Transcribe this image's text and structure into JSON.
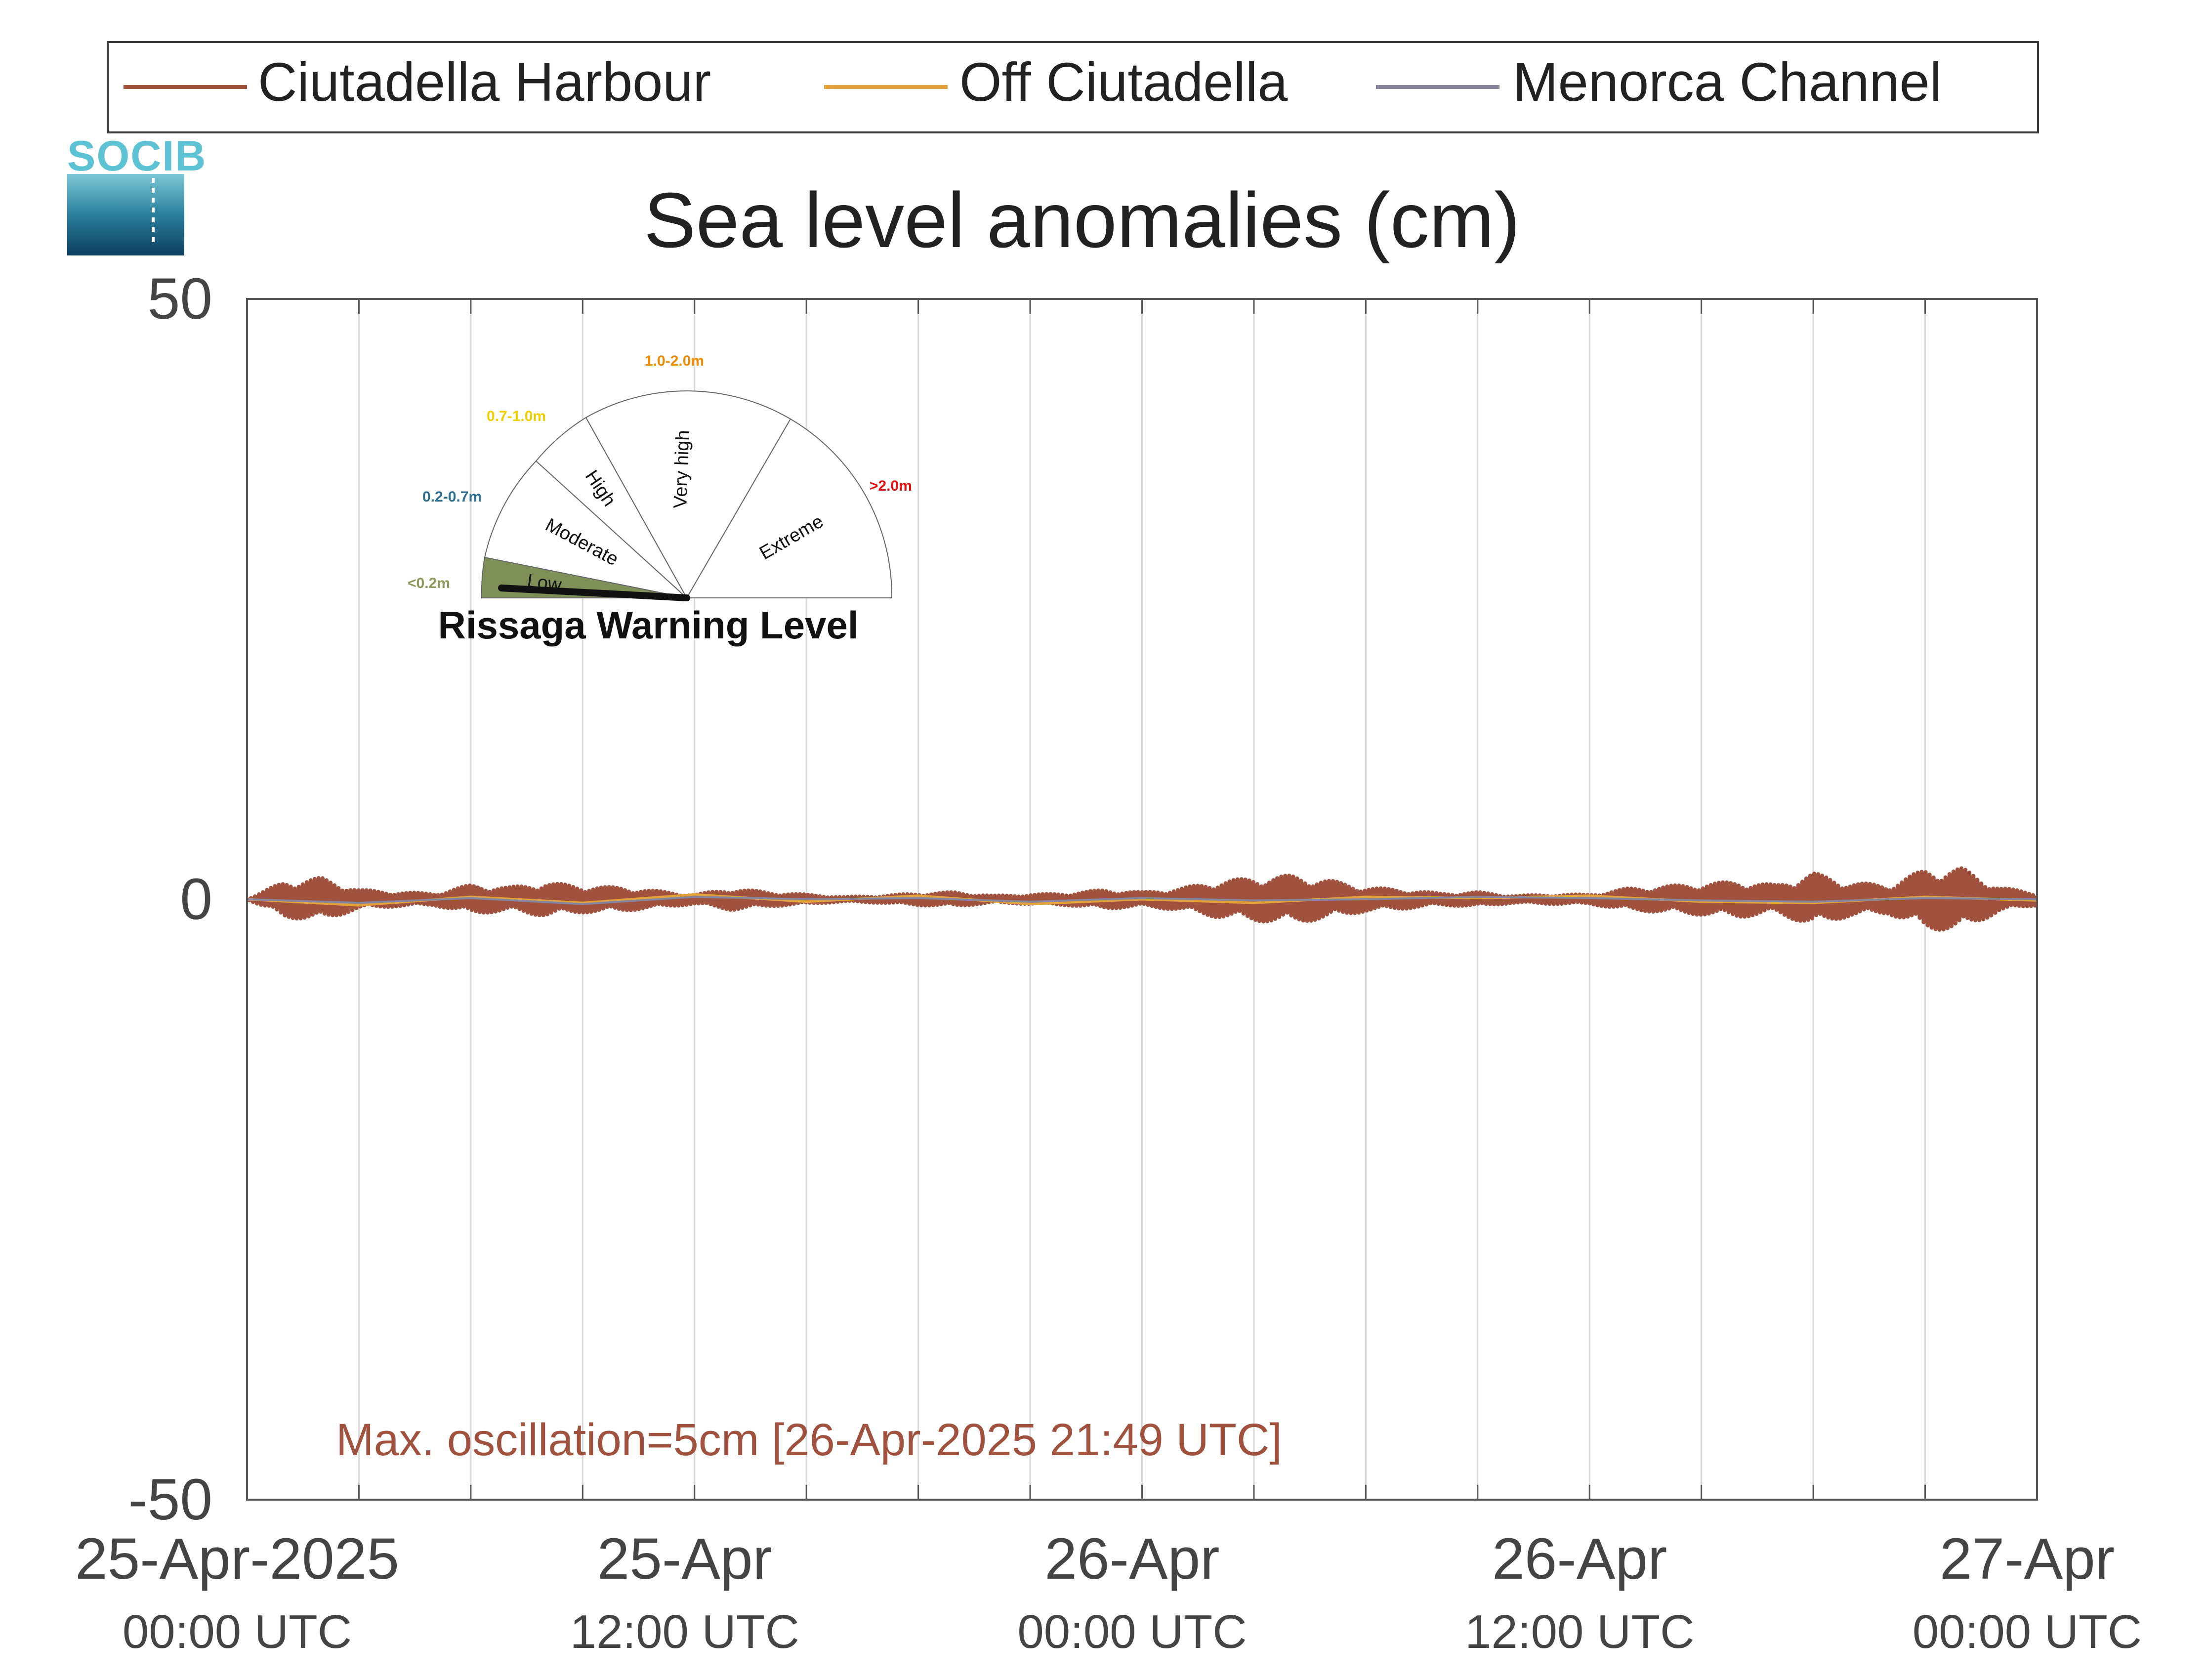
{
  "chart_data": {
    "type": "line",
    "title": "Sea level anomalies (cm)",
    "ylim": [
      -50,
      50
    ],
    "yticks": [
      -50,
      0,
      50
    ],
    "xlim": [
      "2025-04-25 00:00",
      "2025-04-27 00:00"
    ],
    "x_ticks": [
      {
        "value": "2025-04-25 00:00",
        "date": "25-Apr-2025",
        "time": "00:00 UTC"
      },
      {
        "value": "2025-04-25 12:00",
        "date": "25-Apr",
        "time": "12:00 UTC"
      },
      {
        "value": "2025-04-26 00:00",
        "date": "26-Apr",
        "time": "00:00 UTC"
      },
      {
        "value": "2025-04-26 12:00",
        "date": "26-Apr",
        "time": "12:00 UTC"
      },
      {
        "value": "2025-04-27 00:00",
        "date": "27-Apr",
        "time": "00:00 UTC"
      }
    ],
    "grid": "vertical, every 3 hours",
    "legend_position": "top",
    "annotation": "Max. oscillation=5cm [26-Apr-2025 21:49 UTC]",
    "series": [
      {
        "name": "Ciutadella Harbour",
        "color": "#a0523f",
        "x": [
          "2025-04-25 00:00",
          "2025-04-25 01:00",
          "2025-04-25 02:00",
          "2025-04-25 03:00",
          "2025-04-25 04:00",
          "2025-04-25 05:00",
          "2025-04-25 06:00",
          "2025-04-25 07:00",
          "2025-04-25 08:00",
          "2025-04-25 09:00",
          "2025-04-25 10:00",
          "2025-04-25 11:00",
          "2025-04-25 12:00",
          "2025-04-25 13:00",
          "2025-04-25 14:00",
          "2025-04-25 15:00",
          "2025-04-25 16:00",
          "2025-04-25 17:00",
          "2025-04-25 18:00",
          "2025-04-25 19:00",
          "2025-04-25 20:00",
          "2025-04-25 21:00",
          "2025-04-25 22:00",
          "2025-04-25 23:00",
          "2025-04-26 00:00",
          "2025-04-26 01:00",
          "2025-04-26 02:00",
          "2025-04-26 03:00",
          "2025-04-26 04:00",
          "2025-04-26 05:00",
          "2025-04-26 06:00",
          "2025-04-26 07:00",
          "2025-04-26 08:00",
          "2025-04-26 09:00",
          "2025-04-26 10:00",
          "2025-04-26 11:00",
          "2025-04-26 12:00",
          "2025-04-26 13:00",
          "2025-04-26 14:00",
          "2025-04-26 15:00",
          "2025-04-26 16:00",
          "2025-04-26 17:00",
          "2025-04-26 18:00",
          "2025-04-26 19:00",
          "2025-04-26 20:00",
          "2025-04-26 21:00",
          "2025-04-26 22:00",
          "2025-04-26 23:00",
          "2025-04-27 00:00"
        ],
        "y": [
          0.0,
          1.5,
          -1.8,
          0.8,
          -0.6,
          0.5,
          -1.2,
          1.0,
          -1.4,
          1.1,
          -1.0,
          0.7,
          -0.4,
          0.9,
          -0.6,
          0.4,
          -0.2,
          0.3,
          -0.5,
          0.6,
          -0.3,
          0.4,
          -0.5,
          0.8,
          -0.6,
          0.9,
          -1.5,
          1.8,
          -2.0,
          1.6,
          -1.0,
          0.8,
          -0.5,
          0.6,
          -0.3,
          0.4,
          -0.4,
          0.9,
          -1.1,
          1.3,
          -1.5,
          1.2,
          -2.2,
          1.4,
          -1.2,
          2.5,
          -2.6,
          1.0,
          -0.5
        ]
      },
      {
        "name": "Off Ciutadella",
        "color": "#e3a23a",
        "x": [
          "2025-04-25 00:00",
          "2025-04-25 03:00",
          "2025-04-25 06:00",
          "2025-04-25 09:00",
          "2025-04-25 12:00",
          "2025-04-25 15:00",
          "2025-04-25 18:00",
          "2025-04-25 21:00",
          "2025-04-26 00:00",
          "2025-04-26 03:00",
          "2025-04-26 06:00",
          "2025-04-26 09:00",
          "2025-04-26 12:00",
          "2025-04-26 15:00",
          "2025-04-26 18:00",
          "2025-04-26 21:00",
          "2025-04-27 00:00"
        ],
        "y": [
          0.0,
          -0.5,
          0.2,
          -0.3,
          0.4,
          -0.2,
          0.3,
          -0.4,
          0.0,
          -0.3,
          0.2,
          0.1,
          0.3,
          -0.2,
          -0.3,
          0.2,
          -0.1
        ]
      },
      {
        "name": "Menorca Channel",
        "color": "#8585a0",
        "x": [
          "2025-04-25 00:00",
          "2025-04-25 03:00",
          "2025-04-25 06:00",
          "2025-04-25 09:00",
          "2025-04-25 12:00",
          "2025-04-25 15:00",
          "2025-04-25 18:00",
          "2025-04-25 21:00",
          "2025-04-26 00:00",
          "2025-04-26 03:00",
          "2025-04-26 06:00",
          "2025-04-26 09:00",
          "2025-04-26 12:00",
          "2025-04-26 15:00",
          "2025-04-26 18:00",
          "2025-04-26 21:00",
          "2025-04-27 00:00"
        ],
        "y": [
          0.0,
          -0.3,
          0.1,
          -0.4,
          0.2,
          0.0,
          0.1,
          -0.2,
          0.1,
          -0.1,
          0.0,
          0.2,
          0.1,
          -0.1,
          -0.2,
          0.1,
          0.0
        ]
      }
    ]
  },
  "logo": {
    "text": "SOCIB"
  },
  "gauge": {
    "title": "Rissaga Warning Level",
    "current_level": "Low",
    "sectors": [
      {
        "name": "Low",
        "range": "<0.2m",
        "color": "#8a9a5b"
      },
      {
        "name": "Moderate",
        "range": "0.2-0.7m",
        "color": "#2f6f8f"
      },
      {
        "name": "High",
        "range": "0.7-1.0m",
        "color": "#f0d000"
      },
      {
        "name": "Very high",
        "range": "1.0-2.0m",
        "color": "#f08a00"
      },
      {
        "name": "Extreme",
        "range": ">2.0m",
        "color": "#e01010"
      }
    ]
  }
}
